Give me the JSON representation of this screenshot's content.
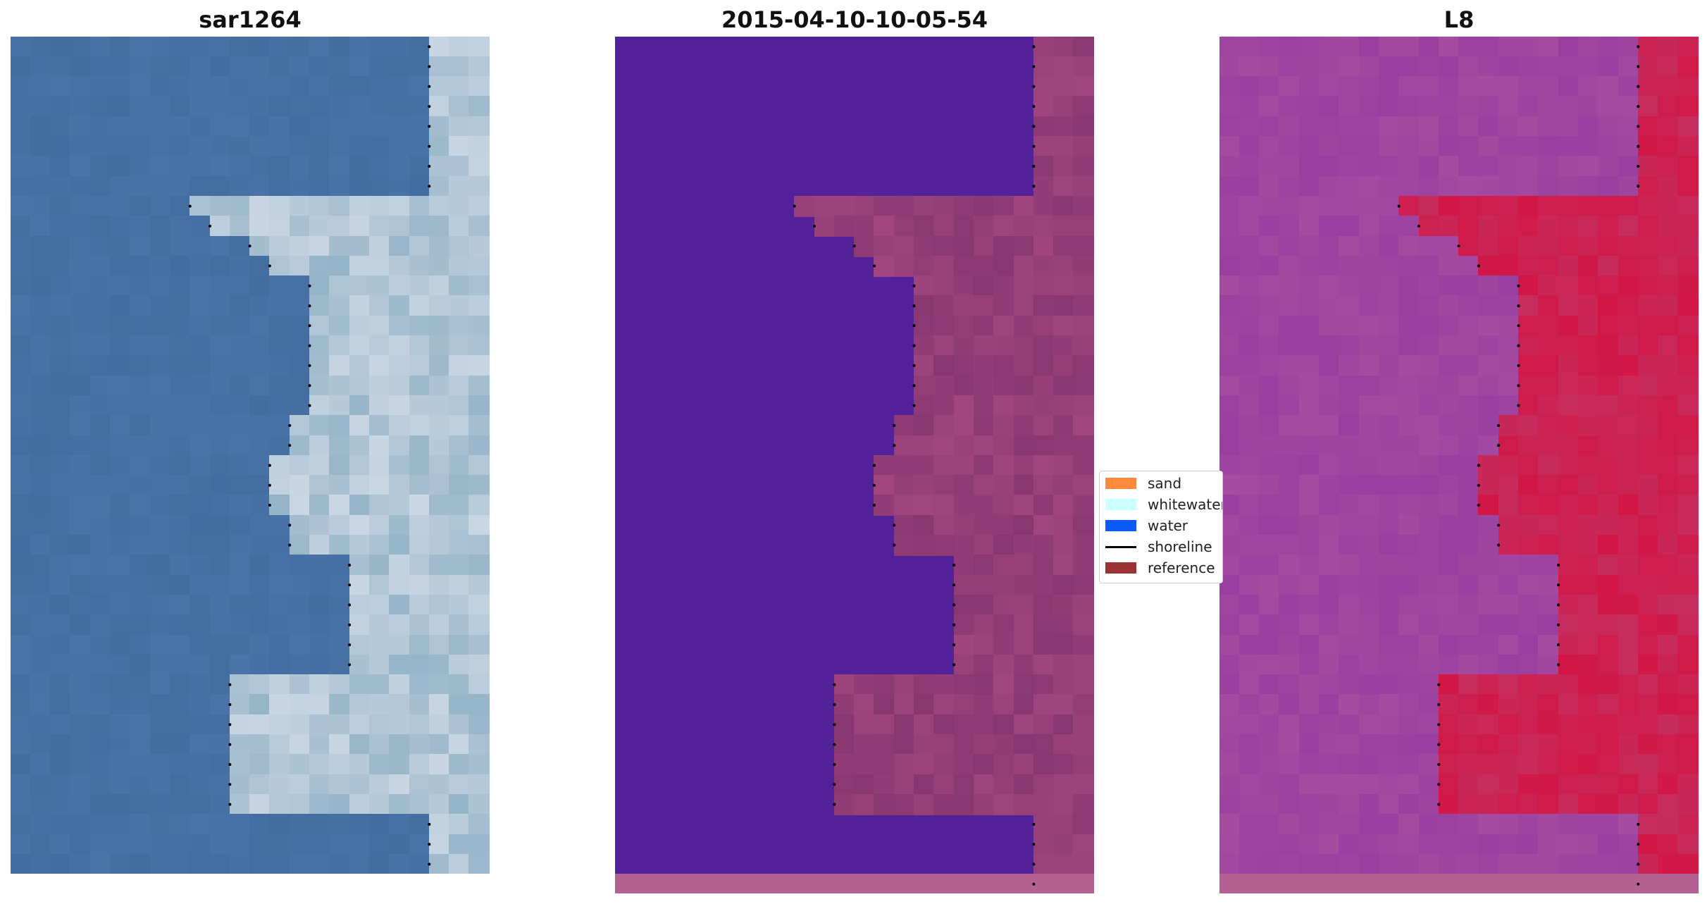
{
  "panels": [
    {
      "title": "sar1264"
    },
    {
      "title": "2015-04-10-10-05-54"
    },
    {
      "title": "L8"
    }
  ],
  "legend": {
    "items": [
      {
        "label": "sand",
        "color": "#fc8a3c",
        "kind": "patch"
      },
      {
        "label": "whitewater",
        "color": "#ccffff",
        "kind": "patch"
      },
      {
        "label": "water",
        "color": "#0a5bf5",
        "kind": "patch"
      },
      {
        "label": "shoreline",
        "color": "#000000",
        "kind": "line"
      },
      {
        "label": "reference",
        "color": "#9b3234",
        "kind": "patch"
      }
    ]
  },
  "colors": {
    "classification_background": "#53219a",
    "land_overlay": "#a0457e",
    "l8_water": "#a54ba0",
    "l8_land": "#d21646",
    "rgb_water": "#4a74a8",
    "rgb_whitewater": "#c9d6e4"
  }
}
